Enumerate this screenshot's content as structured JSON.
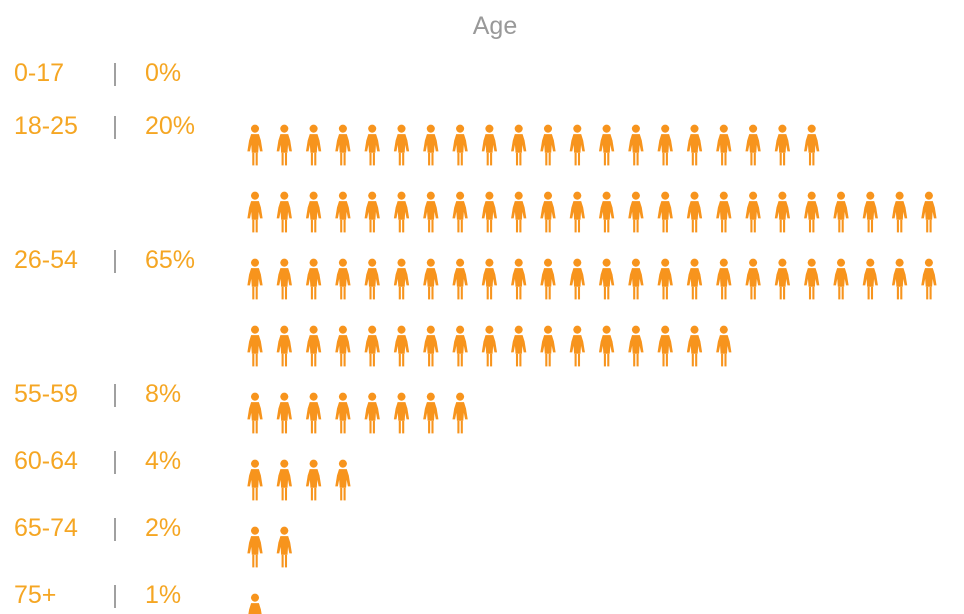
{
  "chart_data": {
    "type": "pictogram",
    "title": "Age",
    "unit_per_icon": "1%",
    "categories": [
      "0-17",
      "18-25",
      "26-54",
      "55-59",
      "60-64",
      "65-74",
      "75+"
    ],
    "values": [
      0,
      20,
      65,
      8,
      4,
      2,
      1
    ],
    "labels": [
      "0%",
      "20%",
      "65%",
      "8%",
      "4%",
      "2%",
      "1%"
    ],
    "separator": "|",
    "icon": "person-icon",
    "icon_color": "#f7941d",
    "label_color": "#f5a623",
    "title_color": "#999999"
  }
}
